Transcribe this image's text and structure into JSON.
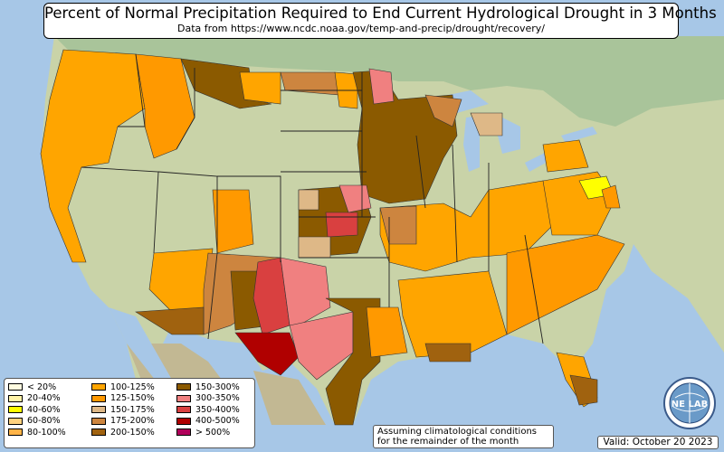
{
  "title": "Percent of Normal Precipitation Required to End Current Hydrological Drought in 3 Months",
  "subtitle": "Data from https://www.ncdc.noaa.gov/temp-and-precip/drought/recovery/",
  "legend": [
    {
      "label": "< 20%",
      "color": "#fffbe0"
    },
    {
      "label": "20-40%",
      "color": "#fff3a8"
    },
    {
      "label": "40-60%",
      "color": "#ffff00"
    },
    {
      "label": "60-80%",
      "color": "#ffd27f"
    },
    {
      "label": "80-100%",
      "color": "#ffb347"
    },
    {
      "label": "100-125%",
      "color": "#ffa500"
    },
    {
      "label": "125-150%",
      "color": "#ff9900"
    },
    {
      "label": "150-175%",
      "color": "#deb887"
    },
    {
      "label": "175-200%",
      "color": "#cd853f"
    },
    {
      "label": "200-150%",
      "color": "#a0620f"
    },
    {
      "label": "150-300%",
      "color": "#8b5a00"
    },
    {
      "label": "300-350%",
      "color": "#f08080"
    },
    {
      "label": "350-400%",
      "color": "#d94040"
    },
    {
      "label": "400-500%",
      "color": "#b00000"
    },
    {
      "label": "> 500%",
      "color": "#b0005a"
    }
  ],
  "note": {
    "line1": "Assuming climatological conditions",
    "line2": "for the remainder of the month"
  },
  "valid": "Valid: October 20 2023",
  "logo": {
    "text": "NE LAB",
    "icon": "nexlab-globe-logo"
  }
}
